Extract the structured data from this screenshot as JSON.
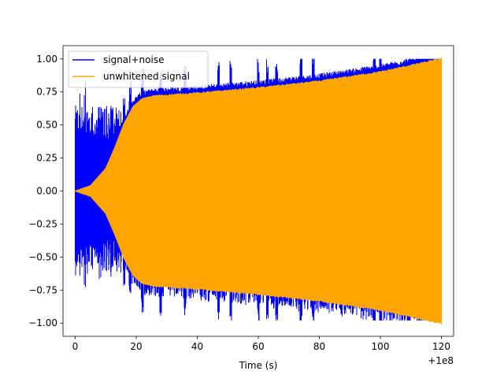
{
  "chart_data": {
    "type": "line",
    "title": "",
    "xlabel": "Time (s)",
    "ylabel": "",
    "x_offset_text": "+1e8",
    "x_tick_labels": [
      "0",
      "20",
      "40",
      "60",
      "80",
      "100",
      "120"
    ],
    "y_tick_labels": [
      "1.00",
      "0.75",
      "0.50",
      "0.25",
      "0.00",
      "−0.25",
      "−0.50",
      "−0.75",
      "−1.00"
    ],
    "xlim": [
      -4,
      124
    ],
    "ylim": [
      -1.1,
      1.1
    ],
    "grid": false,
    "legend_position": "top-left",
    "series": [
      {
        "name": "signal+noise",
        "color": "#0000ff",
        "x_range": [
          0,
          120
        ],
        "description_values": {
          "max_abs_y": 1.0,
          "spike_x": [
            1,
            3,
            6,
            8,
            10,
            11,
            13,
            16,
            18,
            22,
            28,
            36,
            47,
            51,
            60,
            63,
            66,
            74,
            78,
            98,
            100
          ]
        }
      },
      {
        "name": "unwhitened signal",
        "color": "#ffa500",
        "x_range": [
          0,
          120
        ],
        "envelope": {
          "x": [
            0,
            5,
            10,
            13,
            16,
            19,
            22,
            26,
            30,
            40,
            60,
            80,
            100,
            120
          ],
          "y": [
            0.0,
            0.04,
            0.17,
            0.33,
            0.51,
            0.64,
            0.7,
            0.72,
            0.725,
            0.74,
            0.78,
            0.83,
            0.9,
            1.0
          ]
        }
      }
    ]
  }
}
